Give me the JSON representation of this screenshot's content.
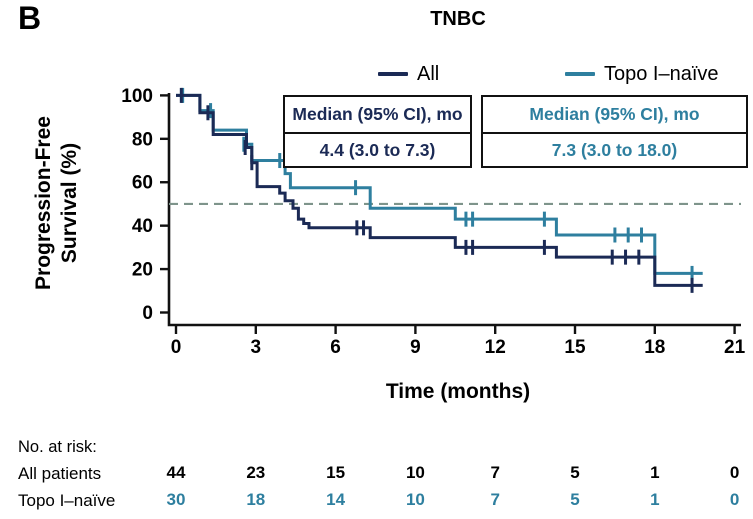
{
  "figure": {
    "panel_label": "B"
  },
  "chart_data": {
    "type": "line",
    "subtype": "kaplan-meier-step",
    "title": "TNBC",
    "xlabel": "Time (months)",
    "ylabel": "Progression-Free Survival (%)",
    "ylabel_lines": [
      "Progression-Free",
      "Survival (%)"
    ],
    "xlim": [
      0,
      21
    ],
    "ylim": [
      0,
      100
    ],
    "xticks": [
      0,
      3,
      6,
      9,
      12,
      15,
      18,
      21
    ],
    "yticks": [
      0,
      20,
      40,
      60,
      80,
      100
    ],
    "grid": false,
    "legend_position": "top",
    "reference_line_y": 50,
    "reference_line_style": "dashed",
    "reference_line_color": "#7e948b",
    "axis_color": "#111111",
    "series": [
      {
        "name": "All",
        "color": "#1b2a55",
        "median_label": "Median (95% CI), mo",
        "median_value": "4.4 (3.0 to 7.3)",
        "points": [
          [
            0,
            100
          ],
          [
            0.9,
            92
          ],
          [
            1.4,
            82
          ],
          [
            2.65,
            76
          ],
          [
            2.85,
            69
          ],
          [
            3.05,
            58
          ],
          [
            3.9,
            55
          ],
          [
            4.1,
            51.5
          ],
          [
            4.4,
            48
          ],
          [
            4.6,
            43
          ],
          [
            4.8,
            41
          ],
          [
            5.0,
            39
          ],
          [
            7.3,
            34.5
          ],
          [
            10.5,
            30
          ],
          [
            14.3,
            25.5
          ],
          [
            18.0,
            12.5
          ],
          [
            19.8,
            12.5
          ]
        ],
        "censor_marks": [
          [
            0.2,
            100
          ],
          [
            1.2,
            92
          ],
          [
            2.6,
            76
          ],
          [
            2.85,
            69
          ],
          [
            6.8,
            39
          ],
          [
            7.05,
            39
          ],
          [
            10.9,
            30
          ],
          [
            11.15,
            30
          ],
          [
            13.85,
            30
          ],
          [
            16.4,
            25.5
          ],
          [
            16.9,
            25.5
          ],
          [
            17.4,
            25.5
          ],
          [
            19.4,
            12.5
          ]
        ]
      },
      {
        "name": "Topo I–naïve",
        "color": "#2e7f9f",
        "median_label": "Median (95% CI), mo",
        "median_value": "7.3 (3.0 to 18.0)",
        "points": [
          [
            0,
            100
          ],
          [
            0.9,
            93
          ],
          [
            1.4,
            84
          ],
          [
            2.65,
            77.5
          ],
          [
            2.85,
            70
          ],
          [
            4.1,
            64
          ],
          [
            4.3,
            57.5
          ],
          [
            7.3,
            48
          ],
          [
            10.5,
            43
          ],
          [
            14.3,
            35.7
          ],
          [
            18.0,
            18
          ],
          [
            19.8,
            18
          ]
        ],
        "censor_marks": [
          [
            0.25,
            100
          ],
          [
            1.3,
            93
          ],
          [
            2.55,
            77.5
          ],
          [
            3.9,
            70
          ],
          [
            6.75,
            57.5
          ],
          [
            10.9,
            43
          ],
          [
            11.15,
            43
          ],
          [
            13.85,
            43
          ],
          [
            16.5,
            35.7
          ],
          [
            17.0,
            35.7
          ],
          [
            17.5,
            35.7
          ],
          [
            19.4,
            18
          ]
        ]
      }
    ],
    "risk_table": {
      "title": "No. at risk:",
      "times": [
        0,
        3,
        6,
        9,
        12,
        15,
        18,
        21
      ],
      "rows": [
        {
          "label": "All patients",
          "color": "#000000",
          "values": [
            44,
            23,
            15,
            10,
            7,
            5,
            1,
            0
          ]
        },
        {
          "label": "Topo I–naïve",
          "color": "#2e7f9f",
          "values": [
            30,
            18,
            14,
            10,
            7,
            5,
            1,
            0
          ]
        }
      ]
    }
  }
}
